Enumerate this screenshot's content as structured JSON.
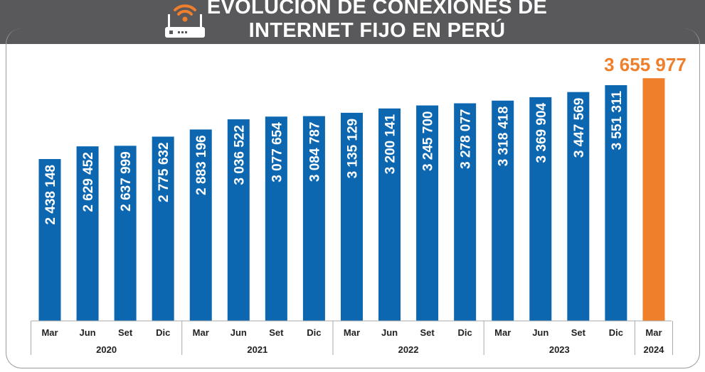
{
  "header": {
    "title_line1": "EVOLUCIÓN DE CONEXIONES DE",
    "title_line2": "INTERNET FIJO EN PERÚ",
    "icon": "router-wifi-icon"
  },
  "colors": {
    "header_bg": "#59585a",
    "bar": "#0c67b0",
    "highlight": "#f07f2c",
    "wifi": "#f07f2c"
  },
  "chart_data": {
    "type": "bar",
    "title": "EVOLUCIÓN DE CONEXIONES DE INTERNET FIJO EN PERÚ",
    "categories": [
      "Mar",
      "Jun",
      "Set",
      "Dic",
      "Mar",
      "Jun",
      "Set",
      "Dic",
      "Mar",
      "Jun",
      "Set",
      "Dic",
      "Mar",
      "Jun",
      "Set",
      "Dic",
      "Mar"
    ],
    "years": [
      {
        "label": "2020",
        "count": 4
      },
      {
        "label": "2021",
        "count": 4
      },
      {
        "label": "2022",
        "count": 4
      },
      {
        "label": "2023",
        "count": 4
      },
      {
        "label": "2024",
        "count": 1
      }
    ],
    "values": [
      2438148,
      2629452,
      2637999,
      2775632,
      2883196,
      3036522,
      3077654,
      3084787,
      3135129,
      3200141,
      3245700,
      3278077,
      3318418,
      3369904,
      3447569,
      3551311,
      3655977
    ],
    "value_labels": [
      "2 438 148",
      "2 629 452",
      "2 637 999",
      "2 775 632",
      "2 883 196",
      "3 036 522",
      "3 077 654",
      "3 084 787",
      "3 135 129",
      "3 200 141",
      "3 245 700",
      "3 278 077",
      "3 318 418",
      "3 369 904",
      "3 447 569",
      "3 551 311",
      "3 655 977"
    ],
    "highlight_index": 16,
    "ylim": [
      0,
      3900000
    ],
    "xlabel": "",
    "ylabel": ""
  }
}
